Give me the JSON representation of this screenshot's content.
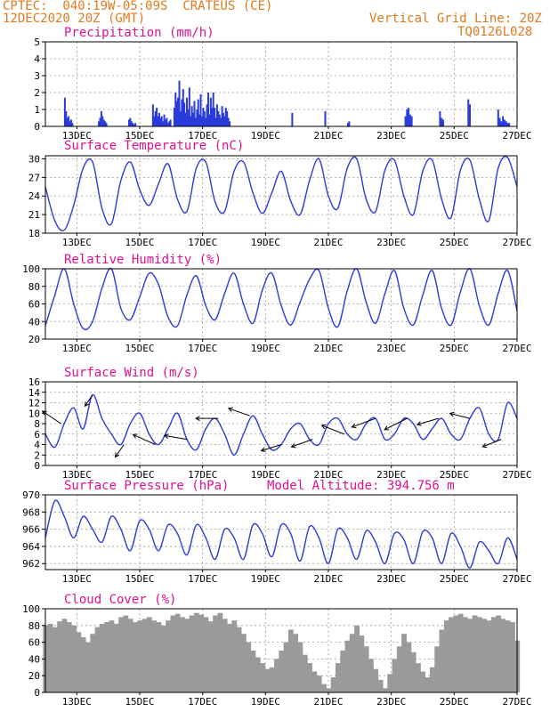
{
  "header": {
    "line1": "CPTEC:  040:19W-05:09S  CRATEUS (CE)",
    "line2": "12DEC2020 20Z (GMT)",
    "grid_note": "Vertical Grid Line: 20Z",
    "code": "TQ0126L028"
  },
  "colors": {
    "header": "#e07a1e",
    "title": "#e0108f",
    "series": "#2a3bdc",
    "cloud": "#9a9a9a",
    "grid": "#9a9a9a"
  },
  "x_ticks": [
    "13DEC",
    "15DEC",
    "17DEC",
    "19DEC",
    "21DEC",
    "23DEC",
    "25DEC",
    "27DEC"
  ],
  "chart_data": [
    {
      "id": "precip",
      "type": "bar",
      "title": "Precipitation (mm/h)",
      "ylim": [
        0,
        5
      ],
      "yticks": [
        "0",
        "1",
        "2",
        "3",
        "4",
        "5"
      ],
      "grid": true,
      "x_days": [
        0.62,
        0.66,
        0.7,
        0.74,
        0.78,
        0.82,
        0.86,
        1.7,
        1.74,
        1.78,
        1.82,
        1.86,
        1.9,
        1.94,
        2.66,
        2.7,
        2.74,
        2.78,
        2.82,
        2.86,
        3.42,
        3.46,
        3.5,
        3.54,
        3.58,
        3.62,
        3.66,
        3.7,
        3.74,
        3.78,
        3.82,
        3.86,
        3.9,
        3.94,
        3.98,
        4.1,
        4.14,
        4.18,
        4.22,
        4.26,
        4.3,
        4.34,
        4.38,
        4.42,
        4.46,
        4.5,
        4.54,
        4.58,
        4.62,
        4.66,
        4.7,
        4.74,
        4.78,
        4.82,
        4.86,
        4.9,
        4.94,
        4.98,
        5.02,
        5.06,
        5.1,
        5.14,
        5.18,
        5.22,
        5.26,
        5.3,
        5.34,
        5.38,
        5.42,
        5.46,
        5.5,
        5.54,
        5.58,
        5.62,
        5.66,
        5.7,
        5.74,
        5.78,
        5.82,
        5.86,
        7.85,
        8.9,
        9.62,
        9.66,
        11.45,
        11.5,
        11.55,
        11.6,
        11.65,
        12.55,
        12.6,
        12.65,
        13.45,
        13.5,
        14.4,
        14.45,
        14.5,
        14.55,
        14.6,
        14.65,
        14.7,
        14.75
      ],
      "values": [
        1.7,
        0.9,
        0.5,
        0.6,
        0.3,
        0.4,
        0.2,
        0.3,
        0.5,
        0.9,
        0.6,
        0.4,
        0.3,
        0.2,
        0.4,
        0.5,
        0.3,
        0.2,
        0.1,
        0.2,
        1.3,
        0.6,
        0.9,
        1.1,
        0.6,
        0.8,
        0.5,
        0.6,
        0.3,
        0.7,
        0.4,
        0.5,
        0.2,
        0.3,
        0.4,
        1.1,
        2.0,
        1.5,
        1.7,
        2.7,
        0.9,
        1.6,
        2.2,
        1.4,
        0.8,
        1.7,
        1.0,
        2.3,
        0.6,
        1.2,
        0.8,
        1.5,
        0.5,
        1.0,
        1.6,
        0.7,
        1.9,
        0.6,
        1.1,
        0.9,
        0.5,
        1.3,
        2.0,
        0.7,
        1.7,
        1.1,
        2.0,
        1.1,
        0.5,
        1.3,
        0.9,
        0.7,
        0.5,
        1.2,
        0.8,
        0.6,
        1.1,
        0.9,
        0.5,
        0.3,
        0.8,
        0.9,
        0.2,
        0.3,
        0.6,
        1.0,
        1.1,
        0.7,
        0.6,
        0.9,
        0.5,
        0.4,
        1.6,
        1.3,
        1.0,
        0.5,
        0.3,
        0.6,
        0.4,
        0.3,
        0.2,
        0.2
      ]
    },
    {
      "id": "temp",
      "type": "line",
      "title": "Surface Temperature (nC)",
      "ylim": [
        18,
        30.5
      ],
      "yticks": [
        "18",
        "21",
        "24",
        "27",
        "30"
      ],
      "grid": true,
      "x_days": [
        0,
        0.3,
        0.6,
        0.9,
        1.2,
        1.5,
        1.8,
        2.1,
        2.4,
        2.7,
        3.0,
        3.3,
        3.6,
        3.9,
        4.2,
        4.5,
        4.8,
        5.1,
        5.4,
        5.7,
        6.0,
        6.3,
        6.6,
        6.9,
        7.2,
        7.5,
        7.8,
        8.1,
        8.4,
        8.7,
        9.0,
        9.3,
        9.6,
        9.9,
        10.2,
        10.5,
        10.8,
        11.1,
        11.4,
        11.7,
        12.0,
        12.3,
        12.6,
        12.9,
        13.2,
        13.5,
        13.8,
        14.1,
        14.4,
        14.7,
        15.0
      ],
      "values": [
        25.5,
        20.0,
        18.5,
        22.5,
        28.5,
        29.5,
        22.0,
        19.5,
        26.5,
        29.5,
        25.0,
        22.5,
        26.0,
        29.2,
        23.5,
        21.5,
        28.5,
        29.5,
        23.0,
        21.5,
        28.0,
        29.5,
        24.5,
        21.2,
        24.5,
        28.0,
        23.2,
        21.0,
        26.5,
        30.0,
        24.0,
        22.0,
        28.5,
        30.0,
        23.5,
        21.5,
        28.2,
        29.8,
        24.0,
        21.0,
        28.0,
        29.8,
        23.5,
        20.5,
        28.2,
        29.8,
        23.5,
        20.0,
        28.5,
        30.2,
        25.5
      ]
    },
    {
      "id": "rh",
      "type": "line",
      "title": "Relative Humidity (%)",
      "ylim": [
        20,
        100
      ],
      "yticks": [
        "20",
        "40",
        "60",
        "80",
        "100"
      ],
      "grid": true,
      "x_days": [
        0,
        0.3,
        0.6,
        0.9,
        1.2,
        1.5,
        1.8,
        2.1,
        2.4,
        2.7,
        3.0,
        3.3,
        3.6,
        3.9,
        4.2,
        4.5,
        4.8,
        5.1,
        5.4,
        5.7,
        6.0,
        6.3,
        6.6,
        6.9,
        7.2,
        7.5,
        7.8,
        8.1,
        8.4,
        8.7,
        9.0,
        9.3,
        9.6,
        9.9,
        10.2,
        10.5,
        10.8,
        11.1,
        11.4,
        11.7,
        12.0,
        12.3,
        12.6,
        12.9,
        13.2,
        13.5,
        13.8,
        14.1,
        14.4,
        14.7,
        15.0
      ],
      "values": [
        35,
        70,
        100,
        60,
        32,
        40,
        78,
        100,
        55,
        42,
        68,
        95,
        82,
        45,
        35,
        70,
        92,
        58,
        42,
        72,
        95,
        60,
        38,
        76,
        95,
        58,
        36,
        62,
        88,
        98,
        55,
        34,
        75,
        100,
        62,
        38,
        72,
        98,
        55,
        36,
        70,
        98,
        55,
        36,
        74,
        100,
        58,
        36,
        72,
        98,
        52
      ]
    },
    {
      "id": "wind",
      "type": "line",
      "title": "Surface Wind (m/s)",
      "ylim": [
        0,
        16
      ],
      "yticks": [
        "0",
        "2",
        "4",
        "6",
        "8",
        "10",
        "12",
        "14",
        "16"
      ],
      "grid": true,
      "x_days": [
        0,
        0.3,
        0.6,
        0.9,
        1.2,
        1.5,
        1.8,
        2.1,
        2.4,
        2.7,
        3.0,
        3.3,
        3.6,
        3.9,
        4.2,
        4.5,
        4.8,
        5.1,
        5.4,
        5.7,
        6.0,
        6.3,
        6.6,
        6.9,
        7.2,
        7.5,
        7.8,
        8.1,
        8.4,
        8.7,
        9.0,
        9.3,
        9.6,
        9.9,
        10.2,
        10.5,
        10.8,
        11.1,
        11.4,
        11.7,
        12.0,
        12.3,
        12.6,
        12.9,
        13.2,
        13.5,
        13.8,
        14.1,
        14.4,
        14.7,
        15.0
      ],
      "values": [
        6,
        3.5,
        8,
        11,
        7,
        13.5,
        9,
        6,
        4,
        8,
        10,
        6,
        4,
        7,
        10,
        5,
        3,
        7,
        9,
        6,
        2,
        6,
        9.5,
        6,
        3,
        4,
        7,
        8,
        5,
        4,
        8,
        9,
        6,
        5,
        8,
        9,
        5,
        6,
        9,
        8,
        5,
        7,
        9,
        6,
        5,
        9,
        11,
        6,
        5,
        12,
        9
      ],
      "arrows": {
        "x_days": [
          0.5,
          1.5,
          2.5,
          3.5,
          4.5,
          5.5,
          6.5,
          7.5,
          8.5,
          9.5,
          10.5,
          11.5,
          12.5,
          13.5,
          14.5
        ],
        "dx": [
          -1.5,
          -0.6,
          -0.7,
          -1.8,
          -1.8,
          -1.8,
          -1.7,
          -1.6,
          -1.7,
          -1.8,
          -1.9,
          -1.8,
          -1.7,
          -1.6,
          -1.5
        ],
        "dy": [
          1.0,
          -0.9,
          -1.0,
          0.8,
          0.3,
          0.0,
          0.6,
          -0.5,
          -0.6,
          0.7,
          -0.7,
          -0.9,
          -0.5,
          0.4,
          -0.6
        ]
      }
    },
    {
      "id": "pres",
      "type": "line",
      "title": "Surface Pressure (hPa)",
      "extra_label": "Model Altitude: 394.756 m",
      "ylim": [
        961.3,
        970
      ],
      "yticks": [
        "962",
        "964",
        "966",
        "968",
        "970"
      ],
      "grid": true,
      "x_days": [
        0,
        0.3,
        0.6,
        0.9,
        1.2,
        1.5,
        1.8,
        2.1,
        2.4,
        2.7,
        3.0,
        3.3,
        3.6,
        3.9,
        4.2,
        4.5,
        4.8,
        5.1,
        5.4,
        5.7,
        6.0,
        6.3,
        6.6,
        6.9,
        7.2,
        7.5,
        7.8,
        8.1,
        8.4,
        8.7,
        9.0,
        9.3,
        9.6,
        9.9,
        10.2,
        10.5,
        10.8,
        11.1,
        11.4,
        11.7,
        12.0,
        12.3,
        12.6,
        12.9,
        13.2,
        13.5,
        13.8,
        14.1,
        14.4,
        14.7,
        15.0
      ],
      "values": [
        965,
        969.3,
        967.5,
        965,
        967.5,
        966,
        964.5,
        967.5,
        966,
        963.5,
        967,
        966,
        963.5,
        966.5,
        965.5,
        963,
        966.5,
        965,
        962.5,
        966,
        965,
        962.5,
        966.5,
        965.5,
        962.8,
        966.5,
        965.5,
        962.3,
        966.3,
        965,
        962,
        966,
        965,
        962.5,
        965.8,
        964.5,
        962,
        965.5,
        964.8,
        962,
        965.7,
        965,
        962,
        965.5,
        964,
        961.5,
        964.5,
        963.5,
        962,
        965,
        962.5
      ]
    },
    {
      "id": "cloud",
      "type": "area",
      "title": "Cloud Cover (%)",
      "ylim": [
        0,
        100
      ],
      "yticks": [
        "0",
        "20",
        "40",
        "60",
        "80",
        "100"
      ],
      "grid": true,
      "x_days": [
        0,
        0.15,
        0.3,
        0.45,
        0.6,
        0.75,
        0.9,
        1.05,
        1.2,
        1.35,
        1.5,
        1.65,
        1.8,
        1.95,
        2.1,
        2.25,
        2.4,
        2.55,
        2.7,
        2.85,
        3.0,
        3.15,
        3.3,
        3.45,
        3.6,
        3.75,
        3.9,
        4.05,
        4.2,
        4.35,
        4.5,
        4.65,
        4.8,
        4.95,
        5.1,
        5.25,
        5.4,
        5.55,
        5.7,
        5.85,
        6.0,
        6.15,
        6.3,
        6.45,
        6.6,
        6.75,
        6.9,
        7.05,
        7.2,
        7.35,
        7.5,
        7.65,
        7.8,
        7.95,
        8.1,
        8.25,
        8.4,
        8.55,
        8.7,
        8.85,
        9.0,
        9.15,
        9.3,
        9.45,
        9.6,
        9.75,
        9.9,
        10.05,
        10.2,
        10.35,
        10.5,
        10.65,
        10.8,
        10.95,
        11.1,
        11.25,
        11.4,
        11.55,
        11.7,
        11.85,
        12.0,
        12.15,
        12.3,
        12.45,
        12.6,
        12.75,
        12.9,
        13.05,
        13.2,
        13.35,
        13.5,
        13.65,
        13.8,
        13.95,
        14.1,
        14.25,
        14.4,
        14.55,
        14.7,
        14.85,
        15.0
      ],
      "values": [
        80,
        82,
        78,
        85,
        88,
        84,
        80,
        72,
        66,
        60,
        70,
        78,
        82,
        84,
        86,
        82,
        90,
        92,
        88,
        84,
        86,
        88,
        90,
        86,
        84,
        80,
        86,
        92,
        94,
        90,
        88,
        92,
        95,
        93,
        90,
        85,
        92,
        95,
        88,
        82,
        86,
        78,
        70,
        60,
        50,
        42,
        35,
        28,
        30,
        40,
        50,
        60,
        75,
        70,
        60,
        45,
        35,
        25,
        20,
        10,
        5,
        18,
        35,
        50,
        62,
        70,
        80,
        68,
        55,
        40,
        28,
        15,
        5,
        22,
        40,
        55,
        70,
        60,
        48,
        35,
        25,
        18,
        30,
        55,
        75,
        86,
        90,
        92,
        94,
        90,
        88,
        92,
        90,
        88,
        86,
        90,
        92,
        88,
        86,
        84,
        62
      ]
    }
  ]
}
